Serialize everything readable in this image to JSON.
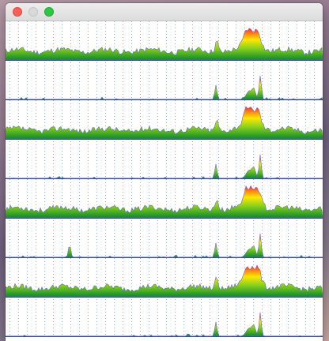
{
  "window": {
    "title": "",
    "controls": [
      "close-button",
      "minimize-button",
      "zoom-button"
    ]
  },
  "colors": {
    "background": "#ffffff",
    "grid": "#3a6ec8",
    "baseline": "#2a4fb0",
    "gradient_low": "#0d8a2a",
    "gradient_mid": "#8fd21a",
    "gradient_high1": "#ffe600",
    "gradient_high2": "#ff8a1a",
    "gradient_peak": "#ff2a2a",
    "outline": "#6a63d8"
  },
  "chart_data": [
    {
      "type": "area",
      "kind": "busy",
      "seed": 11
    },
    {
      "type": "area",
      "kind": "sparse",
      "seed": 23
    },
    {
      "type": "area",
      "kind": "busy",
      "seed": 37
    },
    {
      "type": "area",
      "kind": "sparse",
      "seed": 41
    },
    {
      "type": "area",
      "kind": "busy",
      "seed": 53
    },
    {
      "type": "area",
      "kind": "sparse",
      "seed": 67
    },
    {
      "type": "area",
      "kind": "busy",
      "seed": 79
    },
    {
      "type": "area",
      "kind": "sparse",
      "seed": 97
    }
  ]
}
